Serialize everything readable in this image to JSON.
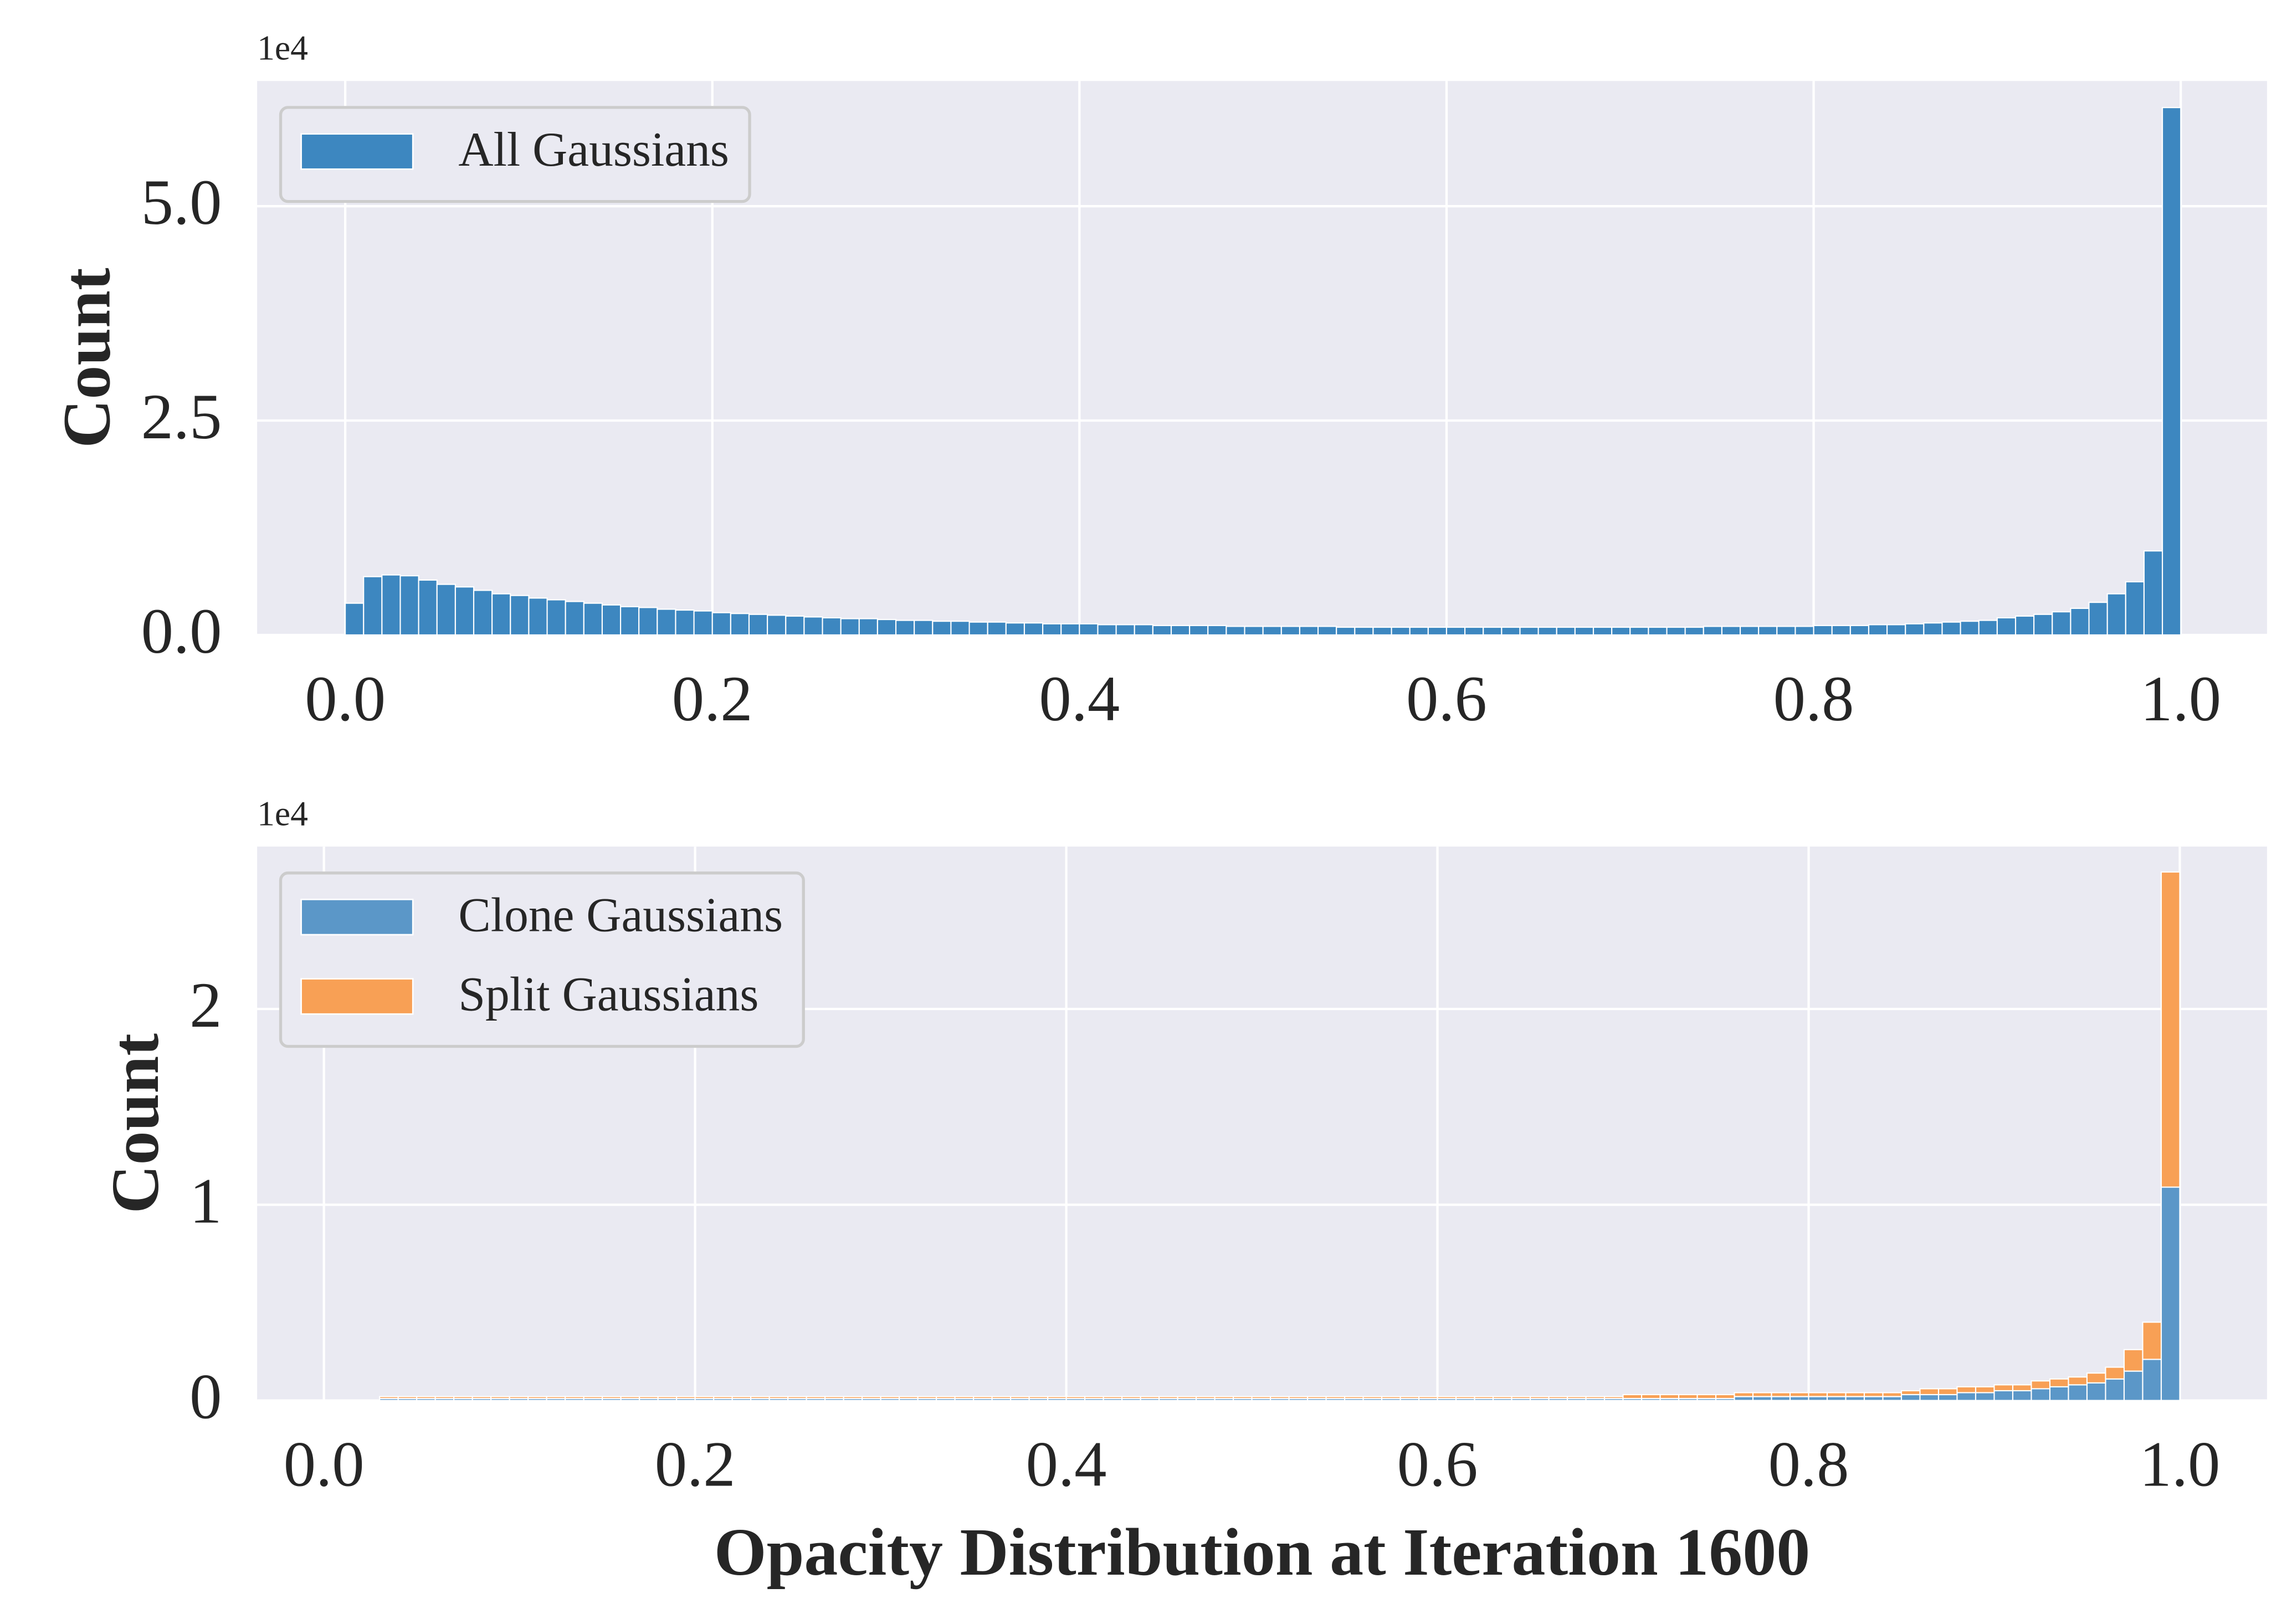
{
  "chart_data": [
    {
      "type": "histogram",
      "offset_label": "1e4",
      "ylabel": "Count",
      "grid": true,
      "legend": "upper left",
      "stacked": false,
      "xlim": [
        -0.048,
        1.047
      ],
      "ylim": [
        0,
        6.46
      ],
      "xticks": [
        {
          "value": 0,
          "label": "0.0"
        },
        0.2,
        0.4,
        0.6,
        0.8,
        {
          "value": 1,
          "label": "1.0"
        }
      ],
      "yticks": [
        {
          "value": 0,
          "label": "0.0"
        },
        2.5,
        {
          "value": 5,
          "label": "5.0"
        }
      ],
      "bins": [
        0,
        0.01,
        0.02,
        0.03,
        0.04,
        0.05,
        0.06,
        0.07,
        0.08,
        0.09,
        0.1,
        0.11,
        0.12,
        0.13,
        0.14,
        0.15,
        0.16,
        0.17,
        0.18,
        0.19,
        0.2,
        0.21,
        0.22,
        0.23,
        0.24,
        0.25,
        0.26,
        0.27,
        0.28,
        0.29,
        0.3,
        0.31,
        0.32,
        0.33,
        0.34,
        0.35,
        0.36,
        0.37,
        0.38,
        0.39,
        0.4,
        0.41,
        0.42,
        0.43,
        0.44,
        0.45,
        0.46,
        0.47,
        0.48,
        0.49,
        0.5,
        0.51,
        0.52,
        0.53,
        0.54,
        0.55,
        0.56,
        0.57,
        0.58,
        0.59,
        0.6,
        0.61,
        0.62,
        0.63,
        0.64,
        0.65,
        0.66,
        0.67,
        0.68,
        0.69,
        0.7,
        0.71,
        0.72,
        0.73,
        0.74,
        0.75,
        0.76,
        0.77,
        0.78,
        0.79,
        0.8,
        0.81,
        0.82,
        0.83,
        0.84,
        0.85,
        0.86,
        0.87,
        0.88,
        0.89,
        0.9,
        0.91,
        0.92,
        0.93,
        0.94,
        0.95,
        0.96,
        0.97,
        0.98,
        0.99,
        1
      ],
      "series": [
        {
          "name": "All Gaussians",
          "color": "#3d87c0",
          "values": [
            0.37,
            0.68,
            0.7,
            0.69,
            0.64,
            0.59,
            0.56,
            0.52,
            0.48,
            0.46,
            0.43,
            0.41,
            0.39,
            0.37,
            0.35,
            0.33,
            0.32,
            0.3,
            0.29,
            0.28,
            0.26,
            0.25,
            0.24,
            0.23,
            0.22,
            0.21,
            0.2,
            0.19,
            0.19,
            0.18,
            0.17,
            0.17,
            0.16,
            0.16,
            0.15,
            0.15,
            0.14,
            0.14,
            0.13,
            0.13,
            0.13,
            0.12,
            0.12,
            0.12,
            0.11,
            0.11,
            0.11,
            0.11,
            0.1,
            0.1,
            0.1,
            0.1,
            0.1,
            0.1,
            0.09,
            0.09,
            0.09,
            0.09,
            0.09,
            0.09,
            0.09,
            0.09,
            0.09,
            0.09,
            0.09,
            0.09,
            0.09,
            0.09,
            0.09,
            0.09,
            0.09,
            0.09,
            0.09,
            0.09,
            0.1,
            0.1,
            0.1,
            0.1,
            0.1,
            0.1,
            0.11,
            0.11,
            0.11,
            0.12,
            0.12,
            0.13,
            0.14,
            0.15,
            0.16,
            0.17,
            0.2,
            0.22,
            0.24,
            0.27,
            0.31,
            0.38,
            0.48,
            0.62,
            0.98,
            6.15
          ]
        }
      ]
    },
    {
      "type": "histogram",
      "offset_label": "1e4",
      "ylabel": "Count",
      "xlabel": "Opacity Distribution at Iteration 1600",
      "grid": true,
      "legend": "upper left",
      "stacked": true,
      "xlim": [
        -0.036,
        1.047
      ],
      "ylim": [
        0,
        2.83
      ],
      "xticks": [
        {
          "value": 0,
          "label": "0.0"
        },
        0.2,
        0.4,
        0.6,
        0.8,
        {
          "value": 1,
          "label": "1.0"
        }
      ],
      "yticks": [
        0,
        1,
        2
      ],
      "bins": [
        0,
        0.01,
        0.02,
        0.03,
        0.04,
        0.05,
        0.06,
        0.07,
        0.08,
        0.09,
        0.1,
        0.11,
        0.12,
        0.13,
        0.14,
        0.15,
        0.16,
        0.17,
        0.18,
        0.19,
        0.2,
        0.21,
        0.22,
        0.23,
        0.24,
        0.25,
        0.26,
        0.27,
        0.28,
        0.29,
        0.3,
        0.31,
        0.32,
        0.33,
        0.34,
        0.35,
        0.36,
        0.37,
        0.38,
        0.39,
        0.4,
        0.41,
        0.42,
        0.43,
        0.44,
        0.45,
        0.46,
        0.47,
        0.48,
        0.49,
        0.5,
        0.51,
        0.52,
        0.53,
        0.54,
        0.55,
        0.56,
        0.57,
        0.58,
        0.59,
        0.6,
        0.61,
        0.62,
        0.63,
        0.64,
        0.65,
        0.66,
        0.67,
        0.68,
        0.69,
        0.7,
        0.71,
        0.72,
        0.73,
        0.74,
        0.75,
        0.76,
        0.77,
        0.78,
        0.79,
        0.8,
        0.81,
        0.82,
        0.83,
        0.84,
        0.85,
        0.86,
        0.87,
        0.88,
        0.89,
        0.9,
        0.91,
        0.92,
        0.93,
        0.94,
        0.95,
        0.96,
        0.97,
        0.98,
        0.99,
        1
      ],
      "series": [
        {
          "name": "Clone Gaussians",
          "color": "#5b97c8",
          "values": [
            0,
            0,
            0,
            0.01,
            0.01,
            0.01,
            0.01,
            0.01,
            0.01,
            0.01,
            0.01,
            0.01,
            0.01,
            0.01,
            0.01,
            0.01,
            0.01,
            0.01,
            0.01,
            0.01,
            0.01,
            0.01,
            0.01,
            0.01,
            0.01,
            0.01,
            0.01,
            0.01,
            0.01,
            0.01,
            0.01,
            0.01,
            0.01,
            0.01,
            0.01,
            0.01,
            0.01,
            0.01,
            0.01,
            0.01,
            0.01,
            0.01,
            0.01,
            0.01,
            0.01,
            0.01,
            0.01,
            0.01,
            0.01,
            0.01,
            0.01,
            0.01,
            0.01,
            0.01,
            0.01,
            0.01,
            0.01,
            0.01,
            0.01,
            0.01,
            0.01,
            0.01,
            0.01,
            0.01,
            0.01,
            0.01,
            0.01,
            0.01,
            0.01,
            0.01,
            0.01,
            0.01,
            0.01,
            0.01,
            0.01,
            0.01,
            0.02,
            0.02,
            0.02,
            0.02,
            0.02,
            0.02,
            0.02,
            0.02,
            0.02,
            0.03,
            0.03,
            0.03,
            0.04,
            0.04,
            0.05,
            0.05,
            0.06,
            0.07,
            0.08,
            0.09,
            0.11,
            0.15,
            0.21,
            1.09
          ]
        },
        {
          "name": "Split Gaussians",
          "color": "#f8a055",
          "values": [
            0,
            0,
            0,
            0.01,
            0.01,
            0.01,
            0.01,
            0.01,
            0.01,
            0.01,
            0.01,
            0.01,
            0.01,
            0.01,
            0.01,
            0.01,
            0.01,
            0.01,
            0.01,
            0.01,
            0.01,
            0.01,
            0.01,
            0.01,
            0.01,
            0.01,
            0.01,
            0.01,
            0.01,
            0.01,
            0.01,
            0.01,
            0.01,
            0.01,
            0.01,
            0.01,
            0.01,
            0.01,
            0.01,
            0.01,
            0.01,
            0.01,
            0.01,
            0.01,
            0.01,
            0.01,
            0.01,
            0.01,
            0.01,
            0.01,
            0.01,
            0.01,
            0.01,
            0.01,
            0.01,
            0.01,
            0.01,
            0.01,
            0.01,
            0.01,
            0.01,
            0.01,
            0.01,
            0.01,
            0.01,
            0.01,
            0.01,
            0.01,
            0.01,
            0.01,
            0.02,
            0.02,
            0.02,
            0.02,
            0.02,
            0.02,
            0.02,
            0.02,
            0.02,
            0.02,
            0.02,
            0.02,
            0.02,
            0.02,
            0.02,
            0.02,
            0.03,
            0.03,
            0.03,
            0.03,
            0.03,
            0.03,
            0.04,
            0.04,
            0.04,
            0.05,
            0.06,
            0.11,
            0.19,
            1.61
          ]
        }
      ]
    }
  ]
}
